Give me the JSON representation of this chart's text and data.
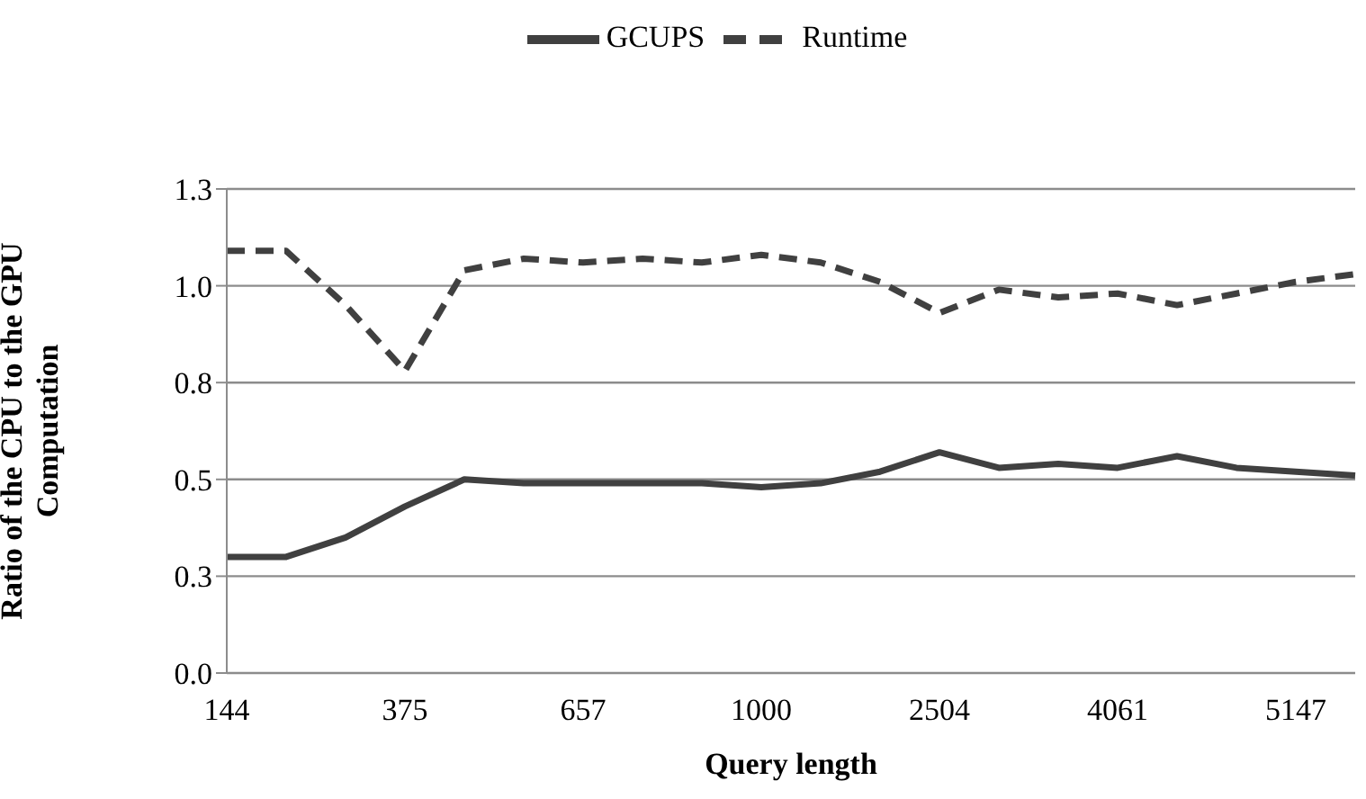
{
  "chart_data": {
    "type": "line",
    "xlabel": "Query length",
    "ylabel": "Ratio of the CPU to the GPU Computation",
    "categories": [
      "144",
      null,
      null,
      "375",
      null,
      null,
      "657",
      null,
      null,
      "1000",
      null,
      null,
      "2504",
      null,
      null,
      "4061",
      null,
      null,
      "5147",
      null
    ],
    "series": [
      {
        "name": "Runtime",
        "color": "#404040",
        "line_style": "dashed",
        "values": [
          1.09,
          1.09,
          0.95,
          0.78,
          1.04,
          1.07,
          1.06,
          1.07,
          1.06,
          1.08,
          1.06,
          1.01,
          0.93,
          0.99,
          0.97,
          0.98,
          0.95,
          0.98,
          1.01,
          1.03
        ]
      },
      {
        "name": "GCUPS",
        "color": "#404040",
        "line_style": "solid",
        "values": [
          0.3,
          0.3,
          0.35,
          0.43,
          0.5,
          0.49,
          0.49,
          0.49,
          0.49,
          0.48,
          0.49,
          0.52,
          0.57,
          0.53,
          0.54,
          0.53,
          0.56,
          0.53,
          0.52,
          0.51
        ]
      }
    ],
    "ylim": [
      0,
      1.25
    ],
    "yticks": [
      {
        "value": 0,
        "label": "0.0"
      },
      {
        "value": 0.25,
        "label": "0.3"
      },
      {
        "value": 0.5,
        "label": "0.5"
      },
      {
        "value": 0.75,
        "label": "0.8"
      },
      {
        "value": 1,
        "label": "1.0"
      },
      {
        "value": 1.25,
        "label": "1.3"
      }
    ],
    "grid": "y",
    "legend": "top",
    "marker": "none"
  }
}
